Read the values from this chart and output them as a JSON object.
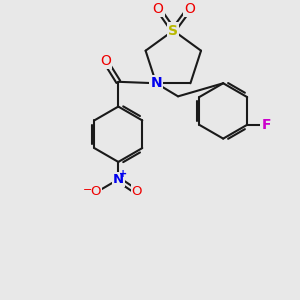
{
  "bg_color": "#e8e8e8",
  "bond_color": "#1a1a1a",
  "S_color": "#b8b800",
  "N_color": "#0000ee",
  "O_color": "#ee0000",
  "F_color": "#cc00cc",
  "lw": 1.5,
  "fig_size": [
    3.0,
    3.0
  ],
  "dpi": 100,
  "xlim": [
    0,
    10
  ],
  "ylim": [
    0,
    10
  ]
}
